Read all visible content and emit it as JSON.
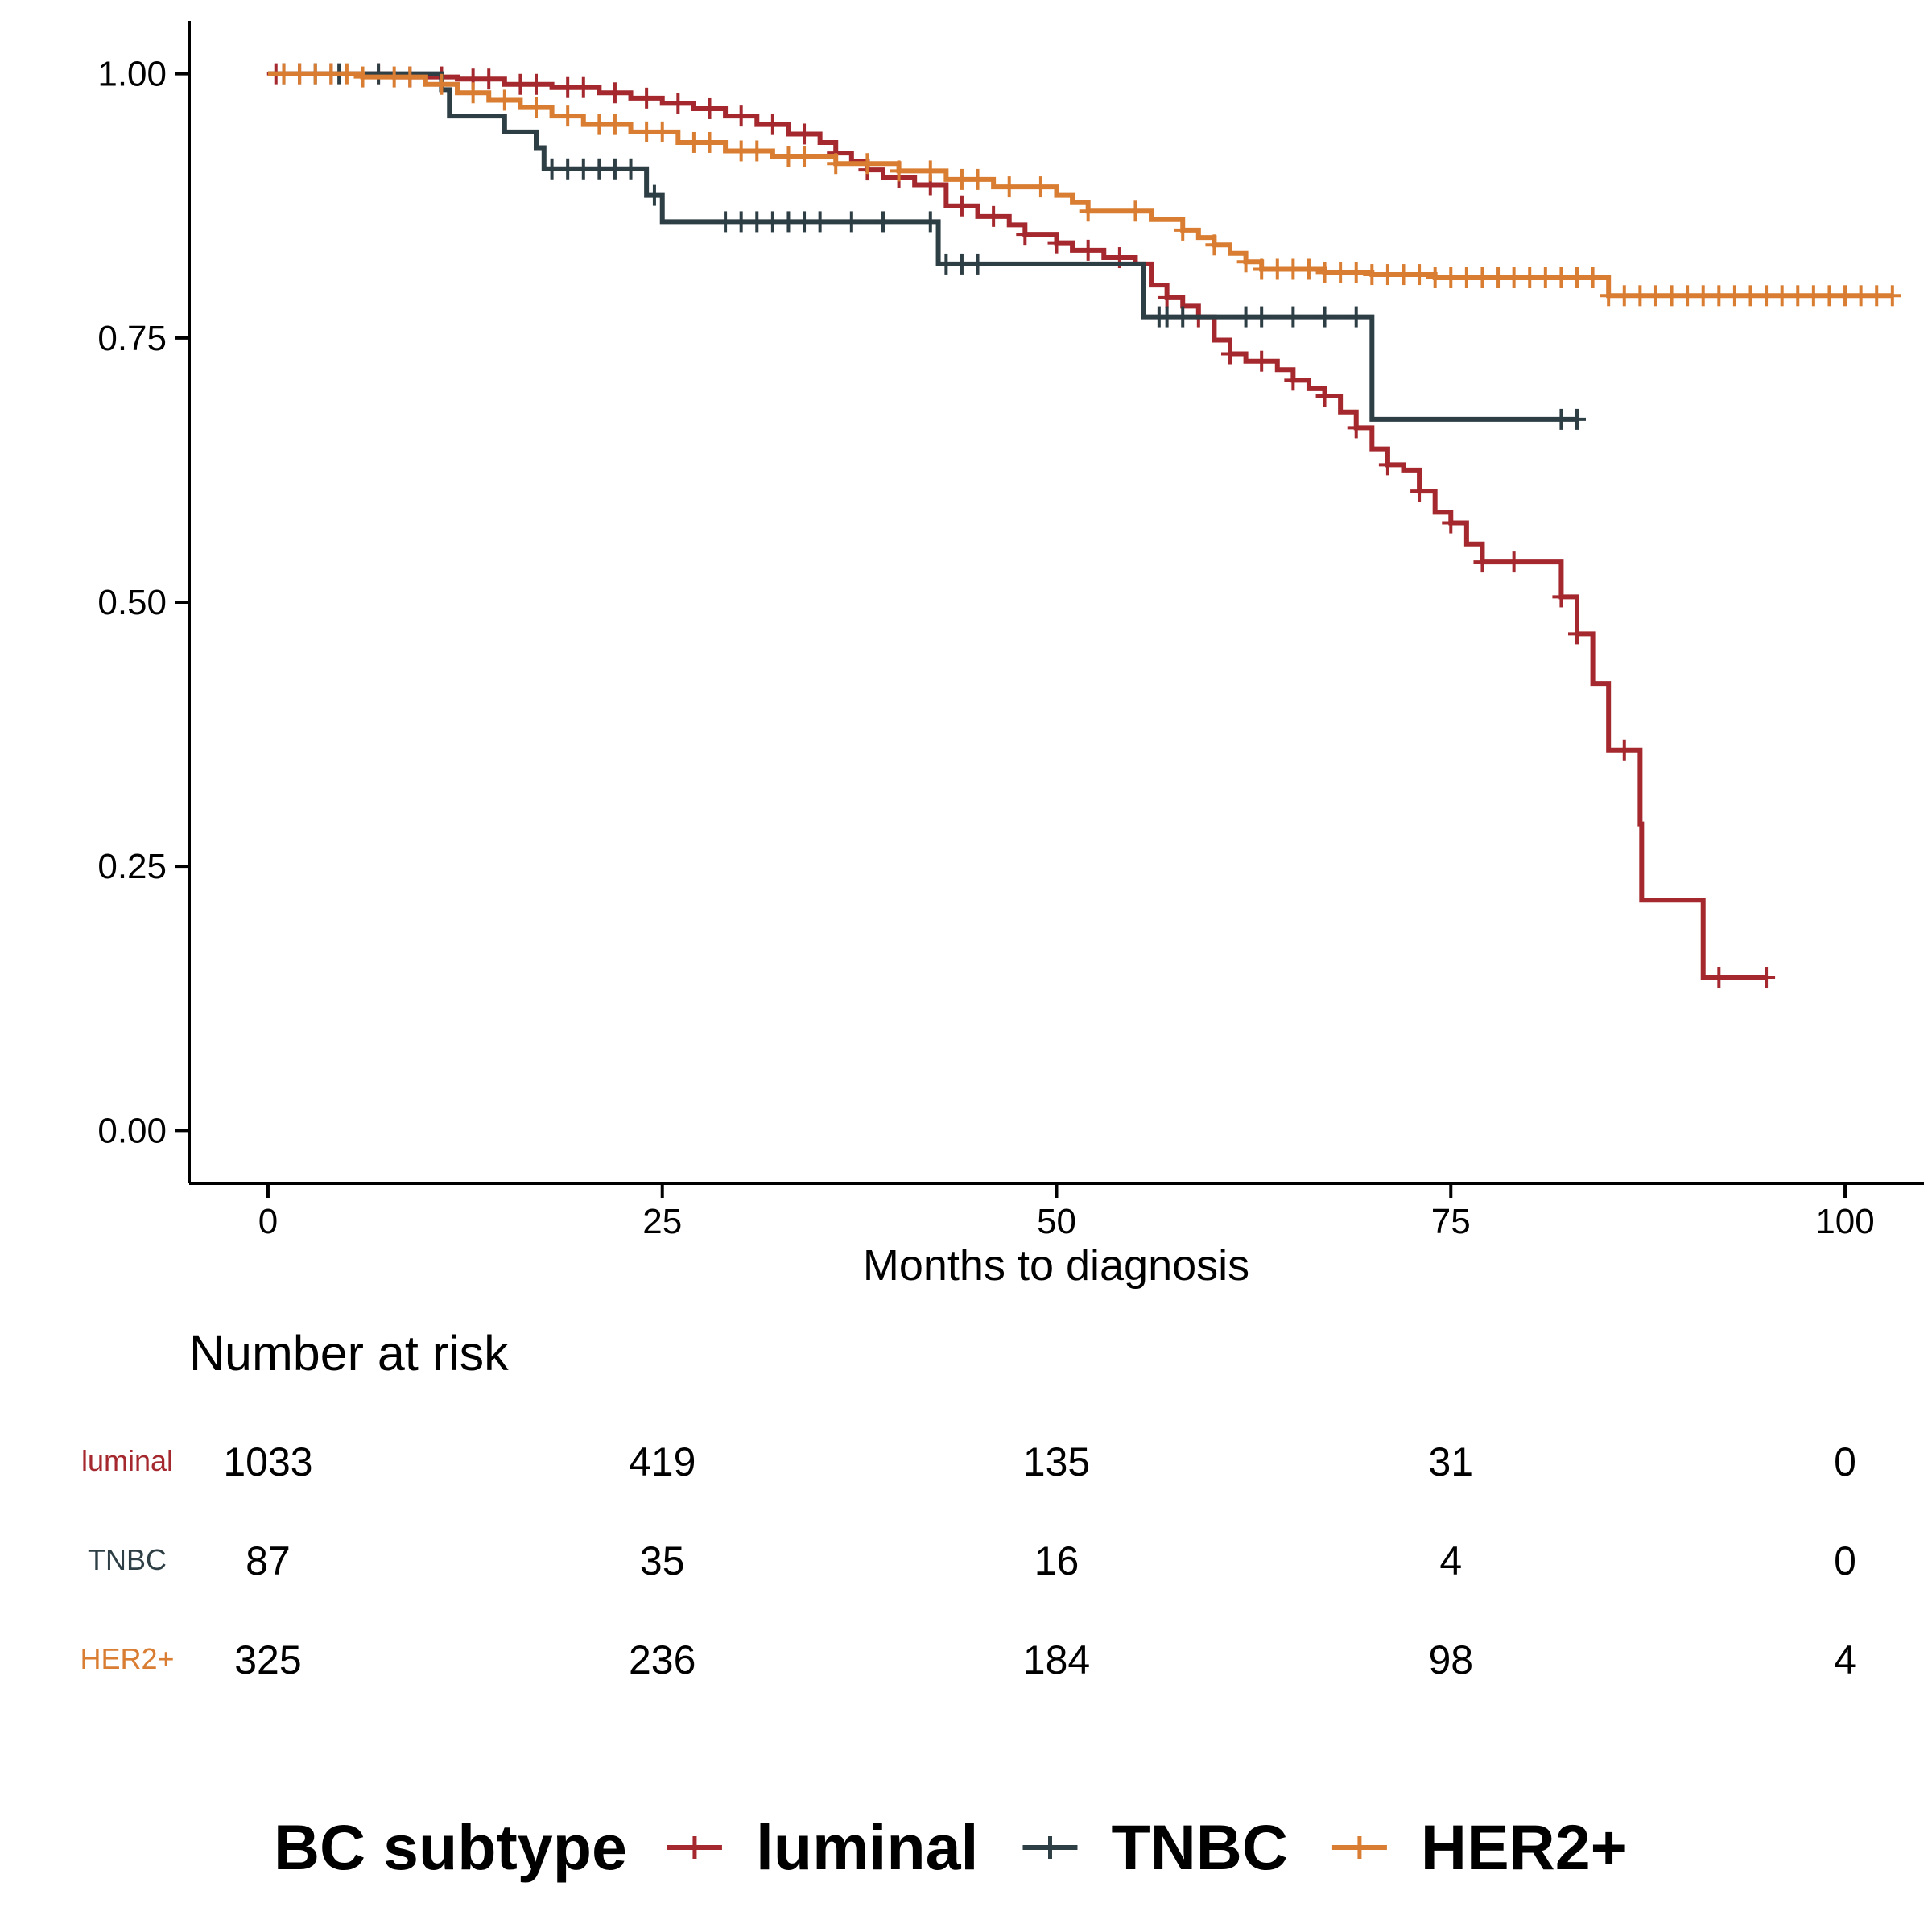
{
  "chart_data": {
    "type": "line",
    "subtype": "kaplan-meier",
    "xlabel": "Months to diagnosis",
    "ylabel": "",
    "xlim": [
      -5,
      105
    ],
    "ylim": [
      -0.05,
      1.05
    ],
    "x_ticks": [
      0,
      25,
      50,
      75,
      100
    ],
    "y_ticks": [
      0.0,
      0.25,
      0.5,
      0.75,
      1.0
    ],
    "x_tick_labels": [
      "0",
      "25",
      "50",
      "75",
      "100"
    ],
    "y_tick_labels": [
      "0.00",
      "0.25",
      "0.50",
      "0.75",
      "1.00"
    ],
    "grid": false,
    "legend": {
      "title": "BC subtype",
      "placement": "bottom",
      "entries": [
        "luminal",
        "TNBC",
        "HER2+"
      ]
    },
    "series": [
      {
        "name": "luminal",
        "color": "#a4282d",
        "steps": [
          [
            0,
            1.0
          ],
          [
            8,
            0.997
          ],
          [
            12,
            0.995
          ],
          [
            15,
            0.99
          ],
          [
            18,
            0.987
          ],
          [
            21,
            0.982
          ],
          [
            23,
            0.977
          ],
          [
            25,
            0.972
          ],
          [
            27,
            0.967
          ],
          [
            29,
            0.96
          ],
          [
            31,
            0.952
          ],
          [
            33,
            0.943
          ],
          [
            35,
            0.935
          ],
          [
            36,
            0.925
          ],
          [
            37,
            0.917
          ],
          [
            38,
            0.909
          ],
          [
            39,
            0.902
          ],
          [
            41,
            0.895
          ],
          [
            43,
            0.875
          ],
          [
            45,
            0.865
          ],
          [
            47,
            0.857
          ],
          [
            48,
            0.848
          ],
          [
            50,
            0.84
          ],
          [
            51,
            0.833
          ],
          [
            53,
            0.826
          ],
          [
            55,
            0.82
          ],
          [
            56,
            0.8
          ],
          [
            57,
            0.788
          ],
          [
            58,
            0.78
          ],
          [
            59,
            0.77
          ],
          [
            60,
            0.748
          ],
          [
            61,
            0.735
          ],
          [
            62,
            0.728
          ],
          [
            64,
            0.72
          ],
          [
            65,
            0.71
          ],
          [
            66,
            0.702
          ],
          [
            67,
            0.695
          ],
          [
            68,
            0.68
          ],
          [
            69,
            0.665
          ],
          [
            70,
            0.645
          ],
          [
            71,
            0.63
          ],
          [
            72,
            0.625
          ],
          [
            73,
            0.605
          ],
          [
            74,
            0.585
          ],
          [
            75,
            0.575
          ],
          [
            76,
            0.555
          ],
          [
            77,
            0.538
          ],
          [
            82,
            0.505
          ],
          [
            83,
            0.47
          ],
          [
            84,
            0.423
          ],
          [
            85,
            0.36
          ],
          [
            87,
            0.29
          ],
          [
            87.1,
            0.218
          ],
          [
            91,
            0.145
          ],
          [
            95,
            0.145
          ]
        ],
        "censor_x": [
          0.5,
          2,
          4,
          7,
          9,
          11,
          13,
          14,
          16,
          17,
          19,
          20,
          22,
          24,
          26,
          28,
          30,
          32,
          34,
          36,
          38,
          40,
          42,
          44,
          46,
          48,
          50,
          52,
          54,
          57,
          59,
          61,
          63,
          65,
          67,
          69,
          71,
          73,
          75,
          77,
          79,
          82,
          83,
          86,
          92,
          95
        ]
      },
      {
        "name": "TNBC",
        "color": "#2d3e45",
        "steps": [
          [
            0,
            1.0
          ],
          [
            11,
            0.985
          ],
          [
            11.5,
            0.96
          ],
          [
            15,
            0.945
          ],
          [
            17,
            0.93
          ],
          [
            17.5,
            0.91
          ],
          [
            24,
            0.885
          ],
          [
            25,
            0.86
          ],
          [
            42.5,
            0.82
          ],
          [
            55.5,
            0.77
          ],
          [
            70,
            0.673
          ],
          [
            83,
            0.673
          ]
        ],
        "censor_x": [
          1,
          3,
          4.5,
          7,
          18,
          19,
          20,
          21,
          22,
          23,
          24.5,
          29,
          30,
          31,
          32,
          33,
          34,
          35,
          37,
          39,
          42,
          43,
          44,
          45,
          56.5,
          57,
          58,
          62,
          63,
          65,
          67,
          69,
          82,
          83
        ]
      },
      {
        "name": "HER2+",
        "color": "#d97d32",
        "steps": [
          [
            0,
            1.0
          ],
          [
            6,
            0.997
          ],
          [
            10,
            0.99
          ],
          [
            12,
            0.982
          ],
          [
            14,
            0.975
          ],
          [
            16,
            0.968
          ],
          [
            18,
            0.96
          ],
          [
            20,
            0.952
          ],
          [
            23,
            0.945
          ],
          [
            26,
            0.935
          ],
          [
            29,
            0.927
          ],
          [
            32,
            0.922
          ],
          [
            36,
            0.915
          ],
          [
            40,
            0.908
          ],
          [
            43,
            0.9
          ],
          [
            46,
            0.893
          ],
          [
            50,
            0.885
          ],
          [
            51,
            0.878
          ],
          [
            52,
            0.87
          ],
          [
            56,
            0.862
          ],
          [
            58,
            0.852
          ],
          [
            59,
            0.845
          ],
          [
            60,
            0.838
          ],
          [
            61,
            0.83
          ],
          [
            62,
            0.822
          ],
          [
            63,
            0.815
          ],
          [
            67,
            0.812
          ],
          [
            70,
            0.81
          ],
          [
            74,
            0.807
          ],
          [
            85,
            0.79
          ],
          [
            103,
            0.79
          ]
        ],
        "censor_x": [
          1,
          2,
          3,
          4,
          5,
          6,
          8,
          9,
          11,
          13,
          15,
          17,
          19,
          21,
          22,
          24,
          25,
          27,
          28,
          30,
          31,
          33,
          34,
          36,
          38,
          40,
          42,
          44,
          45,
          47,
          49,
          52,
          55,
          58,
          60,
          62,
          63,
          64,
          65,
          66,
          67,
          68,
          69,
          70,
          71,
          72,
          73,
          74,
          75,
          76,
          77,
          78,
          79,
          80,
          81,
          82,
          83,
          84,
          85,
          86,
          87,
          88,
          89,
          90,
          91,
          92,
          93,
          94,
          95,
          96,
          97,
          98,
          99,
          100,
          101,
          102,
          103
        ]
      }
    ],
    "risk_table": {
      "title": "Number at risk",
      "rows": [
        {
          "name": "luminal",
          "values": [
            "1033",
            "419",
            "135",
            "31",
            "0"
          ]
        },
        {
          "name": "TNBC",
          "values": [
            "87",
            "35",
            "16",
            "4",
            "0"
          ]
        },
        {
          "name": "HER2+",
          "values": [
            "325",
            "236",
            "184",
            "98",
            "4"
          ]
        }
      ]
    }
  }
}
